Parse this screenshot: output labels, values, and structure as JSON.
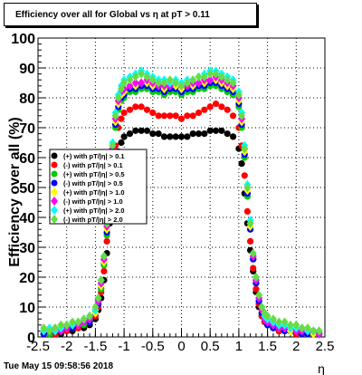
{
  "title": "Efficiency over all for Global vs   η at pT > 0.11",
  "timestamp": "Tue May 15 09:58:56 2018",
  "chart_data": {
    "type": "scatter",
    "xlabel": "η",
    "ylabel": "Efficiency over all (%)",
    "xlim": [
      -2.5,
      2.5
    ],
    "ylim": [
      0,
      100
    ],
    "x_ticks": [
      "-2.5",
      "-2",
      "-1.5",
      "-1",
      "-0.5",
      "0",
      "0.5",
      "1",
      "1.5",
      "2",
      "2.5"
    ],
    "y_ticks": [
      "0",
      "10",
      "20",
      "30",
      "40",
      "50",
      "60",
      "70",
      "80",
      "90",
      "100"
    ],
    "grid": true,
    "legend_position": "left-middle",
    "x": [
      -2.4,
      -2.3,
      -2.2,
      -2.1,
      -2.0,
      -1.9,
      -1.8,
      -1.7,
      -1.6,
      -1.5,
      -1.45,
      -1.4,
      -1.35,
      -1.3,
      -1.25,
      -1.2,
      -1.15,
      -1.1,
      -1.05,
      -1.0,
      -0.9,
      -0.8,
      -0.7,
      -0.6,
      -0.5,
      -0.4,
      -0.3,
      -0.2,
      -0.1,
      0.0,
      0.1,
      0.2,
      0.3,
      0.4,
      0.5,
      0.6,
      0.7,
      0.8,
      0.9,
      1.0,
      1.05,
      1.1,
      1.15,
      1.2,
      1.25,
      1.3,
      1.35,
      1.4,
      1.45,
      1.5,
      1.6,
      1.7,
      1.8,
      1.9,
      2.0,
      2.1,
      2.2,
      2.3,
      2.4
    ],
    "series": [
      {
        "name": "(+) with pT/|η| > 0.1",
        "color": "#000000",
        "values": [
          1,
          1,
          2,
          1,
          2,
          2,
          3,
          3,
          4,
          6,
          9,
          13,
          19,
          28,
          38,
          48,
          56,
          62,
          65,
          67,
          68,
          69,
          69,
          69,
          68,
          68,
          67,
          67,
          67,
          67,
          67,
          68,
          68,
          68,
          69,
          69,
          69,
          68,
          67,
          63,
          58,
          48,
          38,
          29,
          22,
          15,
          10,
          7,
          5,
          4,
          3,
          2,
          2,
          2,
          1,
          1,
          1,
          1,
          1
        ]
      },
      {
        "name": "(-) with pT/|η| > 0.1",
        "color": "#ff0000",
        "values": [
          1,
          1,
          1,
          2,
          2,
          3,
          3,
          4,
          5,
          7,
          10,
          15,
          22,
          32,
          44,
          56,
          64,
          70,
          73,
          75,
          76,
          77,
          77,
          76,
          75,
          74,
          74,
          74,
          74,
          73,
          74,
          74,
          75,
          76,
          77,
          78,
          77,
          76,
          74,
          70,
          64,
          54,
          42,
          32,
          23,
          16,
          11,
          7,
          5,
          4,
          3,
          2,
          2,
          2,
          1,
          1,
          1,
          1,
          1
        ]
      },
      {
        "name": "(+) with pT/|η| > 0.5",
        "color": "#00cc00",
        "values": [
          2,
          1,
          2,
          2,
          3,
          3,
          4,
          4,
          5,
          8,
          11,
          16,
          24,
          34,
          47,
          60,
          70,
          76,
          79,
          80,
          82,
          82,
          83,
          83,
          82,
          82,
          81,
          82,
          82,
          81,
          82,
          82,
          83,
          83,
          84,
          84,
          83,
          82,
          81,
          77,
          70,
          60,
          47,
          36,
          26,
          18,
          12,
          8,
          6,
          4,
          3,
          3,
          2,
          2,
          2,
          1,
          1,
          2,
          1
        ]
      },
      {
        "name": "(-) with pT/|η| > 0.5",
        "color": "#0000ff",
        "values": [
          1,
          2,
          2,
          2,
          3,
          3,
          4,
          5,
          5,
          8,
          11,
          17,
          25,
          35,
          48,
          61,
          71,
          77,
          80,
          81,
          83,
          83,
          84,
          84,
          83,
          83,
          82,
          83,
          83,
          82,
          83,
          83,
          84,
          84,
          85,
          85,
          84,
          83,
          82,
          78,
          71,
          61,
          48,
          36,
          26,
          18,
          12,
          8,
          6,
          4,
          3,
          3,
          2,
          2,
          2,
          1,
          1,
          1,
          1
        ]
      },
      {
        "name": "(+) with pT/|η| > 1.0",
        "color": "#ffff00",
        "values": [
          2,
          2,
          2,
          3,
          3,
          4,
          4,
          5,
          6,
          8,
          12,
          17,
          25,
          36,
          49,
          62,
          72,
          78,
          81,
          82,
          84,
          84,
          85,
          85,
          84,
          84,
          83,
          84,
          84,
          83,
          84,
          84,
          85,
          85,
          86,
          86,
          85,
          84,
          83,
          79,
          72,
          62,
          49,
          37,
          27,
          19,
          13,
          9,
          6,
          5,
          4,
          3,
          3,
          2,
          2,
          2,
          2,
          1,
          1
        ]
      },
      {
        "name": "(-) with pT/|η| > 1.0",
        "color": "#ff00ff",
        "values": [
          2,
          2,
          3,
          2,
          3,
          4,
          4,
          5,
          6,
          9,
          12,
          18,
          26,
          37,
          50,
          63,
          73,
          79,
          82,
          83,
          84,
          85,
          85,
          86,
          85,
          84,
          84,
          84,
          85,
          84,
          84,
          85,
          85,
          86,
          86,
          87,
          86,
          85,
          84,
          80,
          73,
          63,
          50,
          38,
          27,
          19,
          13,
          9,
          6,
          5,
          4,
          3,
          3,
          3,
          2,
          2,
          2,
          2,
          1
        ]
      },
      {
        "name": "(+) with pT/|η| > 2.0",
        "color": "#00ffff",
        "values": [
          2,
          3,
          2,
          3,
          4,
          4,
          5,
          6,
          7,
          9,
          13,
          19,
          27,
          38,
          52,
          65,
          75,
          81,
          84,
          86,
          87,
          88,
          89,
          88,
          87,
          86,
          86,
          85,
          86,
          85,
          86,
          86,
          87,
          88,
          89,
          89,
          88,
          87,
          86,
          82,
          75,
          64,
          51,
          39,
          28,
          20,
          14,
          10,
          7,
          6,
          5,
          4,
          4,
          3,
          3,
          3,
          2,
          2,
          2
        ]
      },
      {
        "name": "(-) with pT/|η| > 2.0",
        "color": "#66dd44",
        "values": [
          3,
          2,
          3,
          4,
          4,
          5,
          5,
          6,
          7,
          10,
          13,
          19,
          27,
          38,
          51,
          64,
          74,
          80,
          83,
          85,
          86,
          87,
          88,
          87,
          86,
          85,
          85,
          86,
          85,
          84,
          85,
          86,
          87,
          87,
          88,
          88,
          87,
          86,
          85,
          81,
          74,
          63,
          50,
          38,
          28,
          20,
          14,
          10,
          8,
          7,
          6,
          5,
          5,
          4,
          4,
          3,
          3,
          2,
          2
        ]
      }
    ]
  }
}
